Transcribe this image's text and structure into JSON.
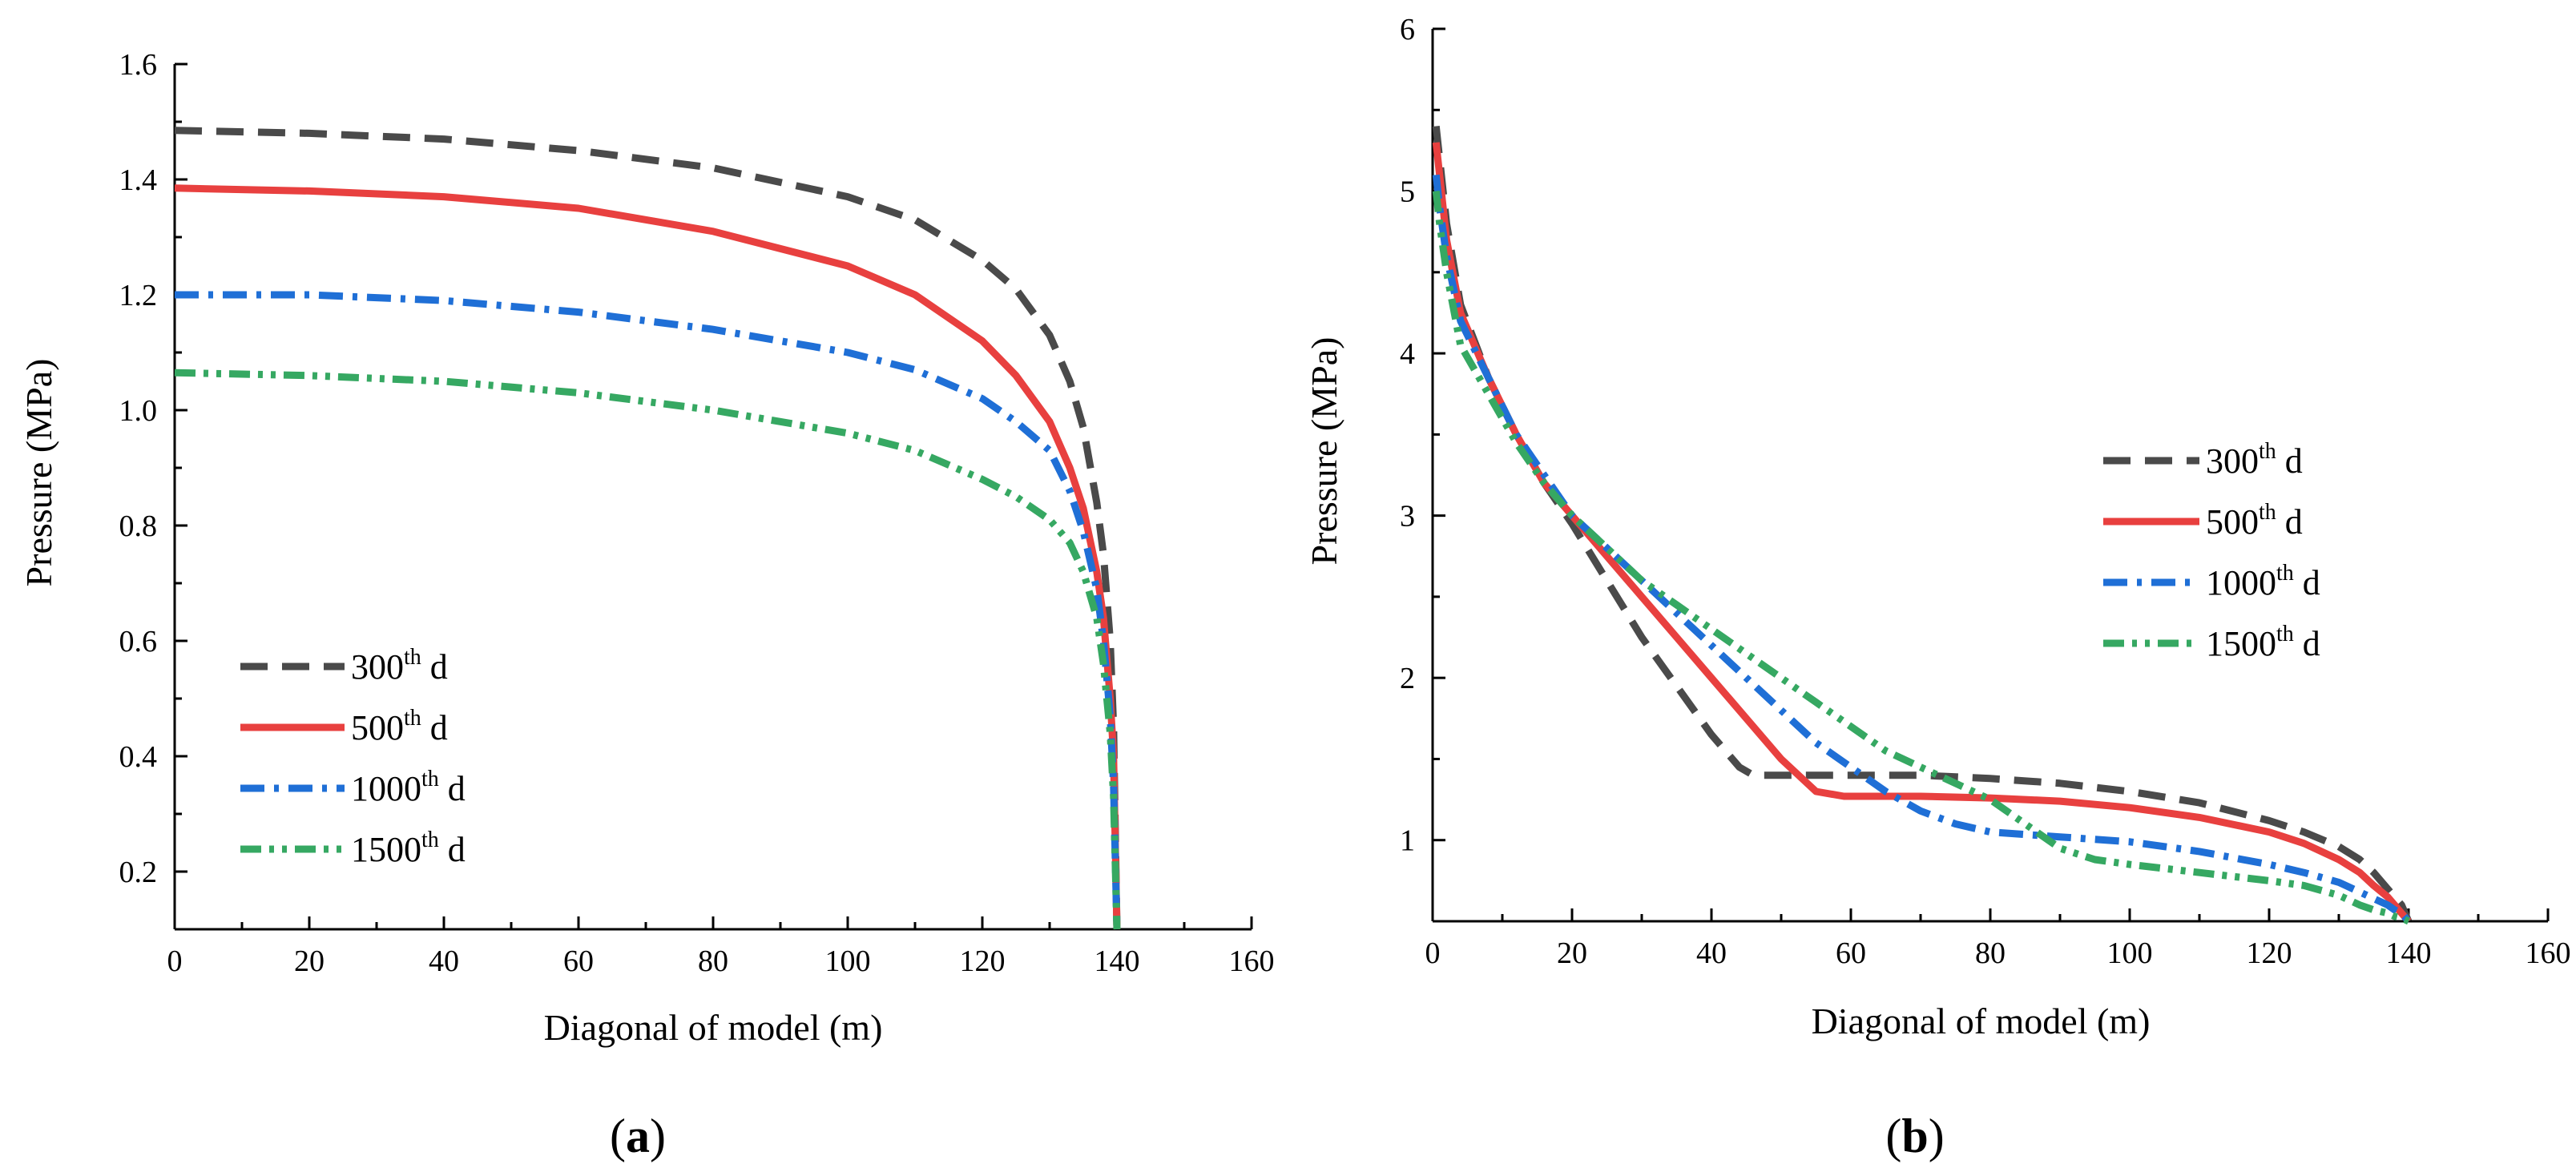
{
  "colors": {
    "300th d": "#4a4a4a",
    "500th d": "#e8403f",
    "1000th d": "#1f6fd6",
    "1500th d": "#36a862",
    "axis": "#000000"
  },
  "chart_data": [
    {
      "panel": "a",
      "panel_label": "(a)",
      "panel_letter": "a",
      "type": "line",
      "xlabel": "Diagonal of model (m)",
      "ylabel": "Pressure (MPa)",
      "xlim": [
        0,
        160
      ],
      "ylim": [
        0.1,
        1.6
      ],
      "xticks": [
        0,
        20,
        40,
        60,
        80,
        100,
        120,
        140,
        160
      ],
      "xtick_labels": [
        "0",
        "20",
        "40",
        "60",
        "80",
        "100",
        "120",
        "140",
        "160"
      ],
      "yticks": [
        0.2,
        0.4,
        0.6,
        0.8,
        1.0,
        1.2,
        1.4,
        1.6
      ],
      "ytick_labels": [
        "0.2",
        "0.4",
        "0.6",
        "0.8",
        "1.0",
        "1.2",
        "1.4",
        "1.6"
      ],
      "legend_position": "lower-left",
      "series": [
        {
          "name": "300th d",
          "label_num": "300",
          "label_sup": "th",
          "label_tail": " d",
          "style": "dash",
          "x": [
            0,
            20,
            40,
            60,
            80,
            100,
            110,
            120,
            125,
            130,
            133,
            135,
            137,
            138,
            139,
            139.5,
            140
          ],
          "y": [
            1.485,
            1.48,
            1.47,
            1.45,
            1.42,
            1.37,
            1.33,
            1.26,
            1.21,
            1.13,
            1.05,
            0.97,
            0.84,
            0.75,
            0.6,
            0.45,
            0.1
          ]
        },
        {
          "name": "500th d",
          "label_num": "500",
          "label_sup": "th",
          "label_tail": " d",
          "style": "solid",
          "x": [
            0,
            20,
            40,
            60,
            80,
            100,
            110,
            120,
            125,
            130,
            133,
            135,
            137,
            138,
            139,
            139.5,
            140
          ],
          "y": [
            1.385,
            1.38,
            1.37,
            1.35,
            1.31,
            1.25,
            1.2,
            1.12,
            1.06,
            0.98,
            0.9,
            0.83,
            0.72,
            0.64,
            0.5,
            0.4,
            0.1
          ]
        },
        {
          "name": "1000th d",
          "label_num": "1000",
          "label_sup": "th",
          "label_tail": " d",
          "style": "dashdot",
          "x": [
            0,
            20,
            40,
            60,
            80,
            100,
            110,
            120,
            125,
            130,
            133,
            135,
            137,
            138,
            139,
            139.5,
            140
          ],
          "y": [
            1.2,
            1.2,
            1.19,
            1.17,
            1.14,
            1.1,
            1.07,
            1.02,
            0.98,
            0.93,
            0.86,
            0.79,
            0.69,
            0.6,
            0.47,
            0.35,
            0.1
          ]
        },
        {
          "name": "1500th d",
          "label_num": "1500",
          "label_sup": "th",
          "label_tail": " d",
          "style": "dashdotdot",
          "x": [
            0,
            20,
            40,
            60,
            80,
            100,
            110,
            120,
            125,
            130,
            133,
            135,
            137,
            138,
            139,
            139.5,
            140
          ],
          "y": [
            1.065,
            1.06,
            1.05,
            1.03,
            1.0,
            0.96,
            0.93,
            0.88,
            0.85,
            0.81,
            0.77,
            0.72,
            0.64,
            0.56,
            0.44,
            0.33,
            0.1
          ]
        }
      ]
    },
    {
      "panel": "b",
      "panel_label": "(b)",
      "panel_letter": "b",
      "type": "line",
      "xlabel": "Diagonal of model (m)",
      "ylabel": "Pressure (MPa)",
      "xlim": [
        0,
        160
      ],
      "ylim": [
        0.5,
        6
      ],
      "xticks": [
        0,
        20,
        40,
        60,
        80,
        100,
        120,
        140,
        160
      ],
      "xtick_labels": [
        "0",
        "20",
        "40",
        "60",
        "80",
        "100",
        "120",
        "140",
        "160"
      ],
      "yticks": [
        1,
        2,
        3,
        4,
        5,
        6
      ],
      "ytick_labels": [
        "1",
        "2",
        "3",
        "4",
        "5",
        "6"
      ],
      "legend_position": "center-right",
      "series": [
        {
          "name": "300th d",
          "label_num": "300",
          "label_sup": "th",
          "label_tail": " d",
          "style": "dash",
          "x": [
            0.5,
            1,
            2,
            4,
            8,
            12,
            16,
            20,
            25,
            30,
            35,
            40,
            44,
            46,
            50,
            60,
            70,
            80,
            90,
            100,
            110,
            120,
            125,
            130,
            133,
            135,
            137,
            138,
            139,
            140
          ],
          "y": [
            5.4,
            5.2,
            4.8,
            4.3,
            3.85,
            3.5,
            3.2,
            2.95,
            2.6,
            2.25,
            1.95,
            1.65,
            1.45,
            1.4,
            1.4,
            1.4,
            1.4,
            1.38,
            1.35,
            1.3,
            1.23,
            1.12,
            1.05,
            0.96,
            0.88,
            0.8,
            0.7,
            0.65,
            0.6,
            0.5
          ]
        },
        {
          "name": "500th d",
          "label_num": "500",
          "label_sup": "th",
          "label_tail": " d",
          "style": "solid",
          "x": [
            0.5,
            1,
            2,
            4,
            8,
            12,
            16,
            20,
            25,
            30,
            35,
            40,
            45,
            50,
            55,
            59,
            62,
            70,
            80,
            90,
            100,
            110,
            120,
            125,
            130,
            133,
            135,
            137,
            138,
            139,
            140
          ],
          "y": [
            5.3,
            5.1,
            4.7,
            4.25,
            3.85,
            3.5,
            3.2,
            3.0,
            2.75,
            2.5,
            2.25,
            2.0,
            1.75,
            1.5,
            1.3,
            1.27,
            1.27,
            1.27,
            1.26,
            1.24,
            1.2,
            1.14,
            1.05,
            0.98,
            0.88,
            0.8,
            0.72,
            0.65,
            0.6,
            0.55,
            0.5
          ]
        },
        {
          "name": "1000th d",
          "label_num": "1000",
          "label_sup": "th",
          "label_tail": " d",
          "style": "dashdot",
          "x": [
            0.5,
            1,
            2,
            4,
            8,
            12,
            16,
            20,
            25,
            30,
            35,
            40,
            45,
            50,
            55,
            60,
            65,
            70,
            75,
            80,
            90,
            100,
            110,
            120,
            125,
            130,
            133,
            135,
            137,
            138,
            139,
            140
          ],
          "y": [
            5.1,
            4.9,
            4.6,
            4.2,
            3.85,
            3.5,
            3.25,
            3.0,
            2.8,
            2.6,
            2.4,
            2.2,
            2.0,
            1.8,
            1.6,
            1.45,
            1.3,
            1.18,
            1.1,
            1.05,
            1.02,
            0.99,
            0.93,
            0.85,
            0.8,
            0.74,
            0.68,
            0.64,
            0.6,
            0.57,
            0.55,
            0.5
          ]
        },
        {
          "name": "1500th d",
          "label_num": "1500",
          "label_sup": "th",
          "label_tail": " d",
          "style": "dashdotdot",
          "x": [
            0.5,
            1,
            2,
            4,
            8,
            12,
            16,
            20,
            25,
            30,
            35,
            40,
            45,
            50,
            55,
            60,
            65,
            70,
            75,
            80,
            85,
            90,
            95,
            100,
            110,
            120,
            125,
            130,
            133,
            135,
            137,
            138,
            139,
            140
          ],
          "y": [
            5.0,
            4.8,
            4.5,
            4.05,
            3.75,
            3.45,
            3.2,
            3.0,
            2.8,
            2.6,
            2.45,
            2.3,
            2.15,
            2.0,
            1.85,
            1.7,
            1.55,
            1.45,
            1.35,
            1.25,
            1.1,
            0.95,
            0.88,
            0.85,
            0.8,
            0.75,
            0.72,
            0.66,
            0.6,
            0.57,
            0.55,
            0.53,
            0.52,
            0.5
          ]
        }
      ]
    }
  ]
}
